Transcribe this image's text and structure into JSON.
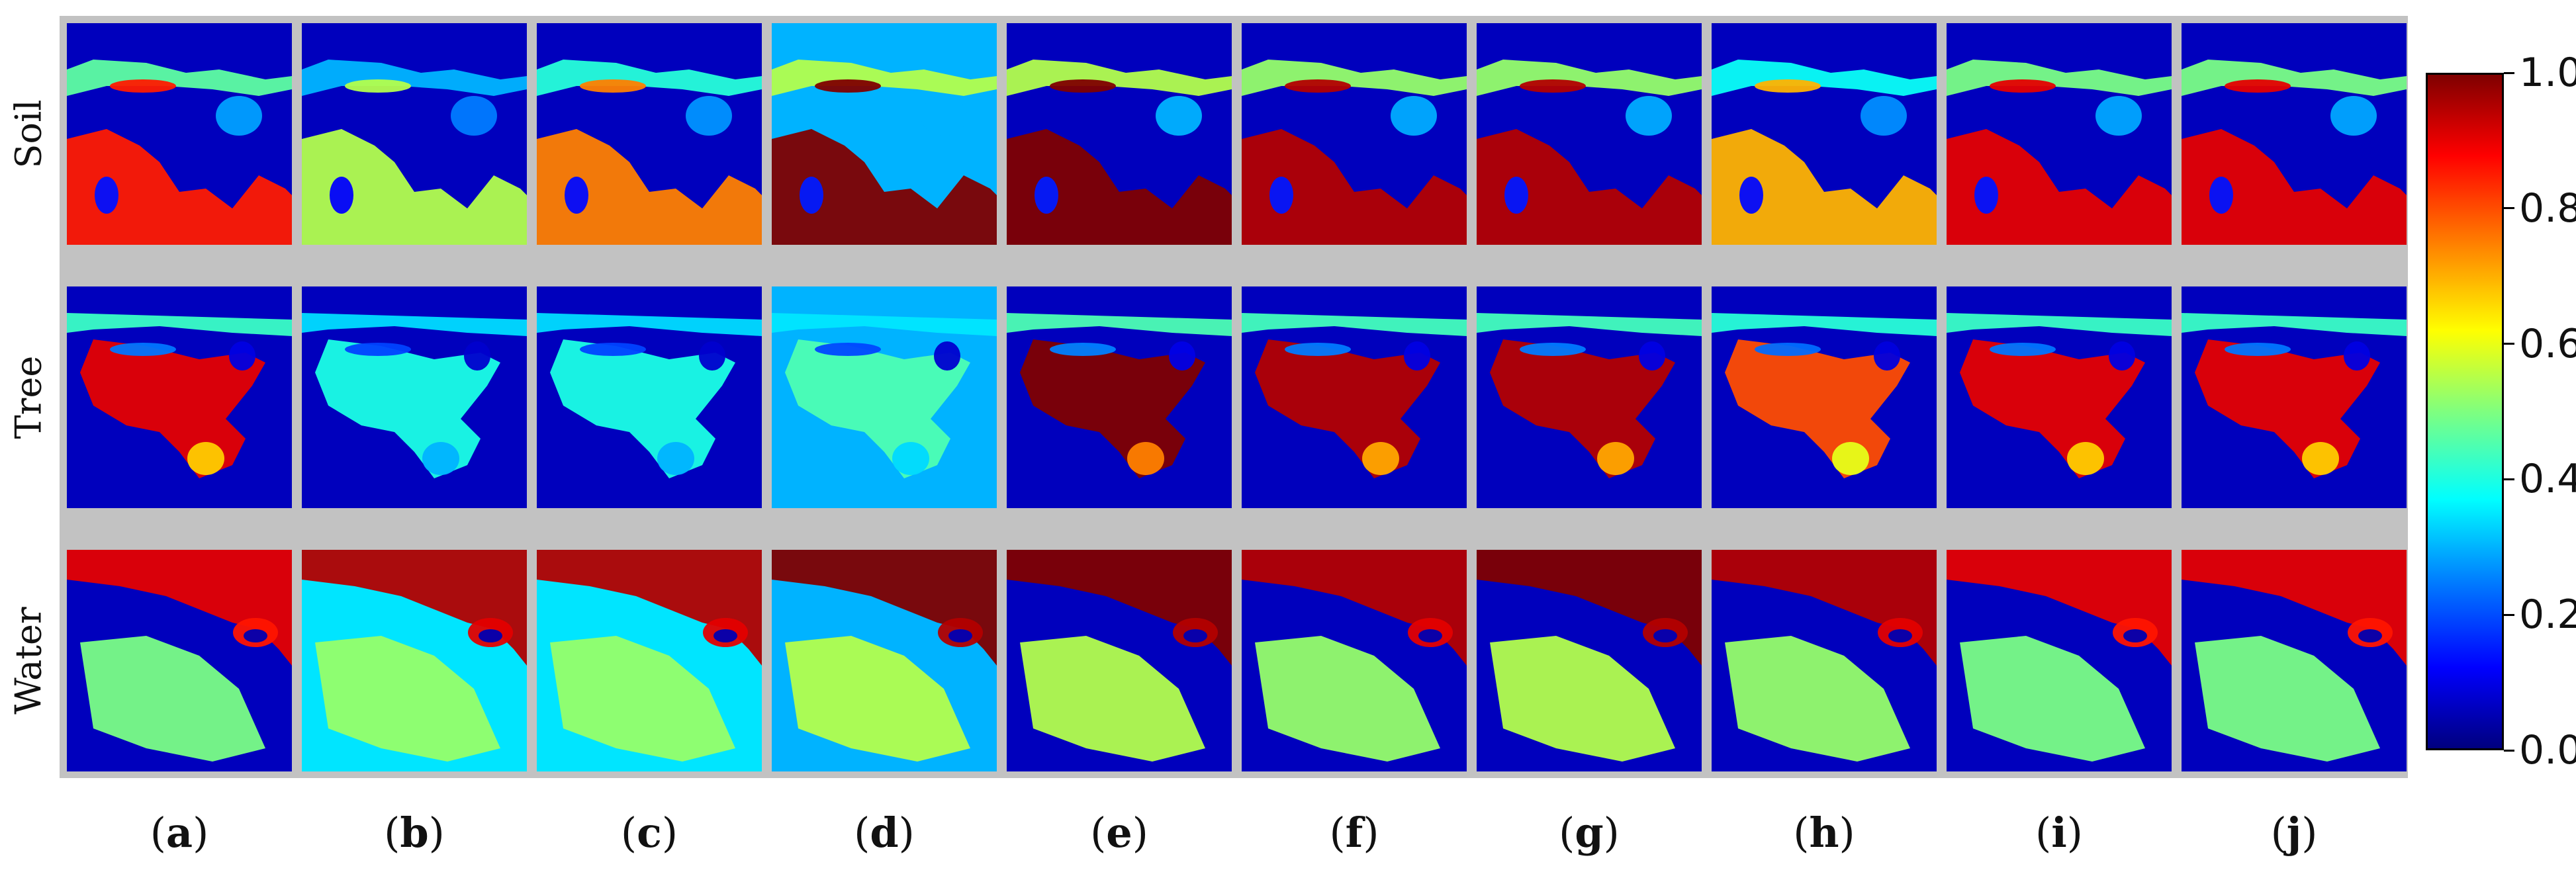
{
  "row_labels": [
    "Soil",
    "Tree",
    "Water"
  ],
  "column_labels": [
    "a",
    "b",
    "c",
    "d",
    "e",
    "f",
    "g",
    "h",
    "i",
    "j"
  ],
  "colorbar": {
    "colormap": "jet",
    "min": 0.0,
    "max": 1.0,
    "ticks": [
      "0.0",
      "0.2",
      "0.4",
      "0.6",
      "0.8",
      "1.0"
    ]
  },
  "colors": {
    "panel_background": "#c2c2c2",
    "jet_dark_blue": "#00007f",
    "jet_dark_red": "#7f0000"
  },
  "abundance_levels": {
    "Soil": [
      0.85,
      0.55,
      0.75,
      1.0,
      1.0,
      0.95,
      0.95,
      0.7,
      0.9,
      0.9
    ],
    "Tree": [
      0.9,
      0.4,
      0.4,
      0.45,
      1.0,
      0.95,
      0.95,
      0.8,
      0.9,
      0.9
    ],
    "Water": [
      0.9,
      0.95,
      0.95,
      1.0,
      1.0,
      0.95,
      1.0,
      0.95,
      0.9,
      0.9
    ]
  }
}
